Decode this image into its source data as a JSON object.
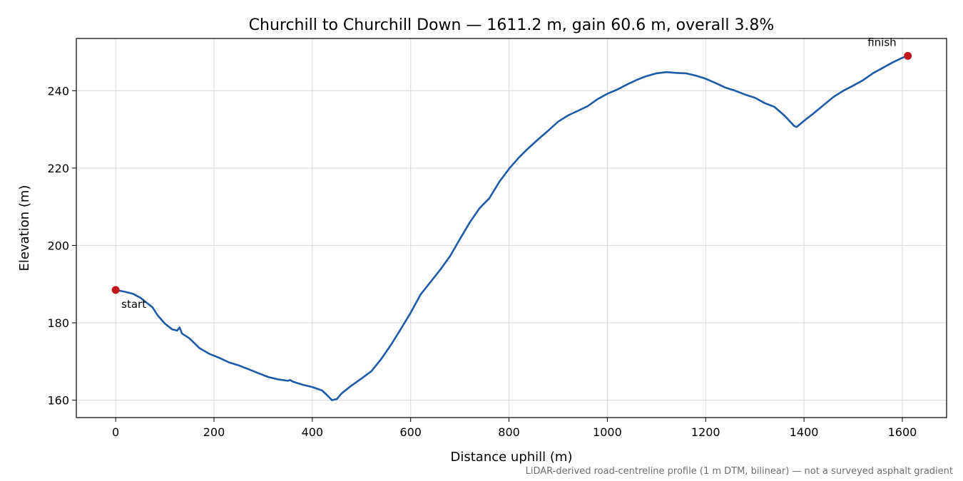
{
  "chart_data": {
    "type": "line",
    "title": "Churchill to Churchill Down — 1611.2 m, gain 60.6 m, overall 3.8%",
    "xlabel": "Distance uphill (m)",
    "ylabel": "Elevation (m)",
    "xlim": [
      -80,
      1690
    ],
    "ylim": [
      155.5,
      253.5
    ],
    "xticks": [
      0,
      200,
      400,
      600,
      800,
      1000,
      1200,
      1400,
      1600
    ],
    "yticks": [
      160,
      180,
      200,
      220,
      240
    ],
    "grid": true,
    "line_color": "#1f5aa6",
    "marker_color": "#c0171e",
    "series": [
      {
        "x": [
          0,
          20,
          35,
          50,
          60,
          75,
          85,
          100,
          115,
          125,
          130,
          135,
          150,
          170,
          190,
          210,
          230,
          250,
          270,
          290,
          310,
          330,
          350,
          355,
          360,
          380,
          400,
          420,
          430,
          440,
          450,
          460,
          480,
          500,
          520,
          540,
          560,
          580,
          600,
          620,
          640,
          660,
          680,
          700,
          720,
          740,
          760,
          780,
          800,
          820,
          840,
          860,
          880,
          900,
          920,
          940,
          960,
          980,
          1000,
          1020,
          1040,
          1060,
          1080,
          1100,
          1120,
          1140,
          1160,
          1180,
          1200,
          1220,
          1240,
          1260,
          1280,
          1300,
          1320,
          1340,
          1360,
          1380,
          1385,
          1400,
          1420,
          1440,
          1460,
          1480,
          1500,
          1520,
          1540,
          1560,
          1580,
          1600,
          1611.2
        ],
        "y": [
          188.5,
          188.0,
          187.5,
          186.5,
          185.5,
          184.0,
          182.0,
          179.8,
          178.3,
          178.0,
          178.8,
          177.2,
          176.0,
          173.5,
          172.0,
          171.0,
          169.8,
          169.0,
          168.0,
          167.0,
          166.0,
          165.4,
          165.0,
          165.2,
          164.8,
          164.0,
          163.4,
          162.5,
          161.3,
          160.0,
          160.3,
          161.8,
          163.8,
          165.6,
          167.5,
          170.6,
          174.3,
          178.4,
          182.6,
          187.3,
          190.5,
          193.7,
          197.2,
          201.6,
          205.9,
          209.6,
          212.2,
          216.4,
          219.8,
          222.7,
          225.2,
          227.5,
          229.7,
          232.0,
          233.6,
          234.8,
          236.0,
          237.8,
          239.2,
          240.3,
          241.6,
          242.8,
          243.8,
          244.5,
          244.8,
          244.6,
          244.5,
          243.9,
          243.1,
          242.0,
          240.8,
          240.0,
          239.0,
          238.2,
          236.8,
          235.8,
          233.6,
          230.9,
          230.6,
          232.2,
          234.2,
          236.3,
          238.4,
          240.0,
          241.3,
          242.7,
          244.5,
          245.9,
          247.3,
          248.5,
          249.0
        ]
      }
    ],
    "annotations": [
      {
        "text": "start",
        "x": 0,
        "y": 188.5
      },
      {
        "text": "finish",
        "x": 1611.2,
        "y": 249.0
      }
    ],
    "footnote": "LiDAR-derived road-centreline profile (1 m DTM, bilinear) — not a surveyed asphalt gradient"
  }
}
